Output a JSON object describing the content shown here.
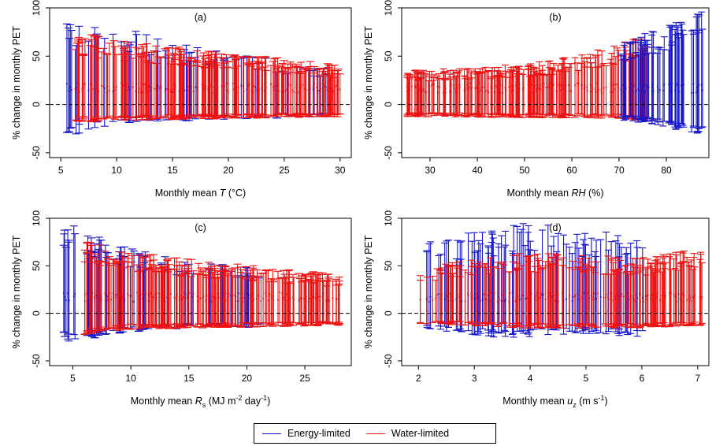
{
  "chart_data": [
    {
      "id": "a",
      "type": "errorbar",
      "panel_label": "(a)",
      "xlabel": "Monthly mean T (°C)",
      "xlabel_parts": [
        "Monthly mean ",
        "T",
        " (°C)"
      ],
      "ylabel": "% change in monthly PET",
      "xlim": [
        4,
        31
      ],
      "ylim": [
        -55,
        100
      ],
      "xticks": [
        5,
        10,
        15,
        20,
        25,
        30
      ],
      "yticks": [
        -50,
        0,
        50,
        100
      ],
      "reference_line_y": 0,
      "seed": 11,
      "series": [
        {
          "name": "Energy-limited",
          "color": "#1515c8",
          "n": 70,
          "x_range": [
            5,
            29
          ],
          "upper": [
            [
              5,
              90
            ],
            [
              6,
              85
            ],
            [
              9,
              80
            ],
            [
              12,
              70
            ],
            [
              16,
              58
            ],
            [
              22,
              48
            ],
            [
              29,
              38
            ]
          ],
          "lower": [
            [
              5,
              -25
            ],
            [
              6,
              -30
            ],
            [
              9,
              -22
            ],
            [
              12,
              -18
            ],
            [
              20,
              -15
            ],
            [
              29,
              -12
            ]
          ]
        },
        {
          "name": "Water-limited",
          "color": "#ee1111",
          "n": 230,
          "x_range": [
            6,
            30
          ],
          "upper": [
            [
              6,
              72
            ],
            [
              9,
              65
            ],
            [
              12,
              60
            ],
            [
              16,
              55
            ],
            [
              20,
              50
            ],
            [
              25,
              45
            ],
            [
              30,
              38
            ]
          ],
          "lower": [
            [
              6,
              -18
            ],
            [
              10,
              -16
            ],
            [
              20,
              -14
            ],
            [
              30,
              -12
            ]
          ]
        }
      ]
    },
    {
      "id": "b",
      "type": "errorbar",
      "panel_label": "(b)",
      "xlabel": "Monthly mean RH (%)",
      "xlabel_parts": [
        "Monthly mean ",
        "RH",
        " (%)"
      ],
      "ylabel": "% change in monthly PET",
      "xlim": [
        24,
        89
      ],
      "ylim": [
        -55,
        100
      ],
      "xticks": [
        30,
        40,
        50,
        60,
        70,
        80
      ],
      "yticks": [
        -50,
        0,
        50,
        100
      ],
      "reference_line_y": 0,
      "seed": 22,
      "series": [
        {
          "name": "Water-limited",
          "color": "#ee1111",
          "n": 240,
          "x_range": [
            25,
            76
          ],
          "upper": [
            [
              25,
              33
            ],
            [
              40,
              36
            ],
            [
              55,
              42
            ],
            [
              65,
              52
            ],
            [
              72,
              62
            ],
            [
              76,
              68
            ]
          ],
          "lower": [
            [
              25,
              -12
            ],
            [
              50,
              -13
            ],
            [
              70,
              -14
            ],
            [
              76,
              -16
            ]
          ]
        },
        {
          "name": "Energy-limited",
          "color": "#1515c8",
          "n": 70,
          "x_range": [
            70,
            88
          ],
          "upper": [
            [
              70,
              58
            ],
            [
              75,
              68
            ],
            [
              80,
              75
            ],
            [
              84,
              90
            ],
            [
              88,
              98
            ]
          ],
          "lower": [
            [
              70,
              -15
            ],
            [
              78,
              -20
            ],
            [
              84,
              -28
            ],
            [
              88,
              -30
            ]
          ]
        }
      ]
    },
    {
      "id": "c",
      "type": "errorbar",
      "panel_label": "(c)",
      "xlabel": "Monthly mean Rs (MJ m-2 day-1)",
      "xlabel_parts": [
        "Monthly mean ",
        "R",
        "s",
        " (MJ m",
        "-2",
        " day",
        "-1",
        ")"
      ],
      "ylabel": "% change in monthly PET",
      "xlim": [
        3,
        29
      ],
      "ylim": [
        -55,
        100
      ],
      "xticks": [
        5,
        10,
        15,
        20,
        25
      ],
      "yticks": [
        -50,
        0,
        50,
        100
      ],
      "reference_line_y": 0,
      "seed": 33,
      "series": [
        {
          "name": "Energy-limited",
          "color": "#1515c8",
          "n": 80,
          "x_range": [
            4,
            22
          ],
          "upper": [
            [
              4,
              95
            ],
            [
              6,
              80
            ],
            [
              9,
              68
            ],
            [
              12,
              58
            ],
            [
              16,
              52
            ],
            [
              22,
              45
            ]
          ],
          "lower": [
            [
              4,
              -25
            ],
            [
              5,
              -30
            ],
            [
              8,
              -22
            ],
            [
              12,
              -16
            ],
            [
              22,
              -14
            ]
          ]
        },
        {
          "name": "Water-limited",
          "color": "#ee1111",
          "n": 230,
          "x_range": [
            6,
            28
          ],
          "upper": [
            [
              6,
              75
            ],
            [
              9,
              62
            ],
            [
              14,
              55
            ],
            [
              20,
              48
            ],
            [
              25,
              42
            ],
            [
              28,
              38
            ]
          ],
          "lower": [
            [
              6,
              -22
            ],
            [
              10,
              -16
            ],
            [
              20,
              -14
            ],
            [
              28,
              -12
            ]
          ]
        }
      ]
    },
    {
      "id": "d",
      "type": "errorbar",
      "panel_label": "(d)",
      "xlabel": "Monthly mean uz (m s-1)",
      "xlabel_parts": [
        "Monthly mean ",
        "u",
        "z",
        " (m s",
        "-1",
        ")"
      ],
      "ylabel": "% change in monthly PET",
      "xlim": [
        1.7,
        7.2
      ],
      "ylim": [
        -55,
        100
      ],
      "xticks": [
        2,
        3,
        4,
        5,
        6,
        7
      ],
      "yticks": [
        -50,
        0,
        50,
        100
      ],
      "reference_line_y": 0,
      "seed": 44,
      "series": [
        {
          "name": "Energy-limited",
          "color": "#1515c8",
          "n": 90,
          "x_range": [
            2.0,
            6.2
          ],
          "upper": [
            [
              2.0,
              70
            ],
            [
              3.0,
              80
            ],
            [
              4.0,
              90
            ],
            [
              5.0,
              80
            ],
            [
              6.2,
              85
            ]
          ],
          "lower": [
            [
              2.0,
              -15
            ],
            [
              3.5,
              -25
            ],
            [
              5.0,
              -20
            ],
            [
              6.2,
              -25
            ]
          ]
        },
        {
          "name": "Water-limited",
          "color": "#ee1111",
          "n": 210,
          "x_range": [
            2.0,
            7.1
          ],
          "upper": [
            [
              2.0,
              45
            ],
            [
              3.0,
              55
            ],
            [
              4.0,
              60
            ],
            [
              5.0,
              58
            ],
            [
              6.0,
              55
            ],
            [
              7.1,
              65
            ]
          ],
          "lower": [
            [
              2.0,
              -10
            ],
            [
              4.0,
              -15
            ],
            [
              6.0,
              -15
            ],
            [
              7.1,
              -12
            ]
          ]
        }
      ]
    }
  ],
  "legend": {
    "items": [
      {
        "label": "Energy-limited",
        "color": "#1515c8"
      },
      {
        "label": "Water-limited",
        "color": "#ee1111"
      }
    ]
  }
}
